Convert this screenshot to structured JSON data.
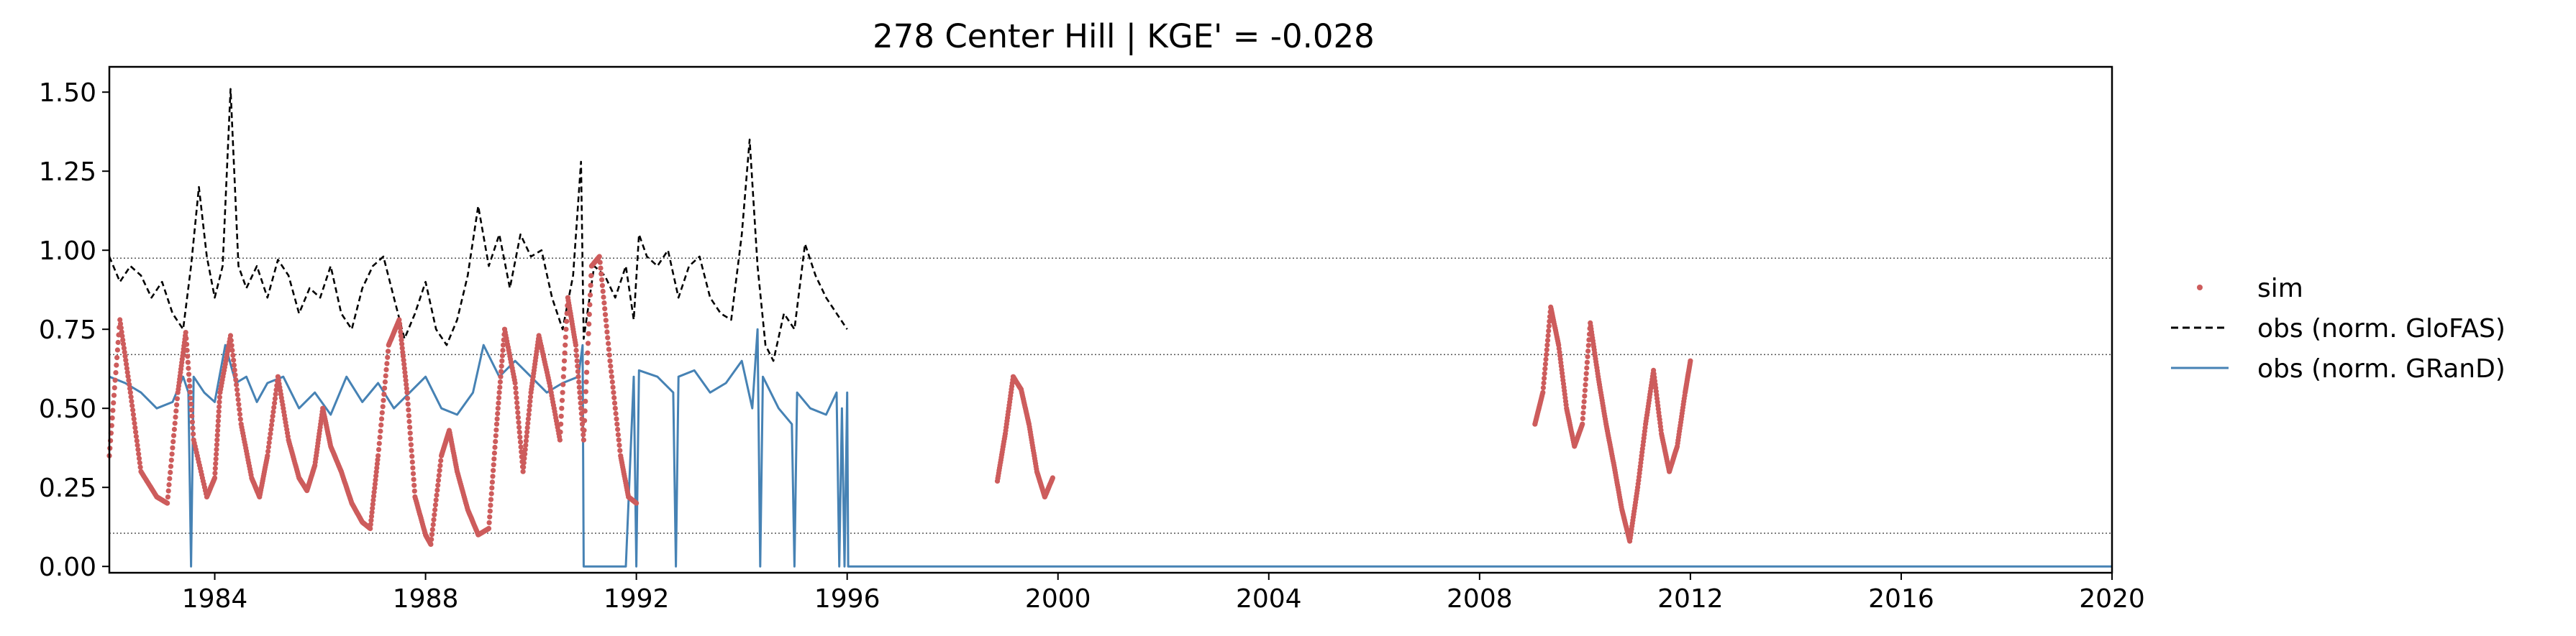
{
  "chart_data": {
    "type": "line",
    "title": "278  Center Hill | KGE' = -0.028",
    "xlabel": "",
    "ylabel": "",
    "xlim": [
      1982.0,
      2020.0
    ],
    "ylim": [
      -0.02,
      1.58
    ],
    "xticks": [
      1984,
      1988,
      1992,
      1996,
      2000,
      2004,
      2008,
      2012,
      2016,
      2020
    ],
    "xtick_labels": [
      "1984",
      "1988",
      "1992",
      "1996",
      "2000",
      "2004",
      "2008",
      "2012",
      "2016",
      "2020"
    ],
    "yticks": [
      0.0,
      0.25,
      0.5,
      0.75,
      1.0,
      1.25,
      1.5
    ],
    "ytick_labels": [
      "0.00",
      "0.25",
      "0.50",
      "0.75",
      "1.00",
      "1.25",
      "1.50"
    ],
    "hlines": [
      0.975,
      0.67,
      0.105
    ],
    "legend_position": "right, outside plot",
    "legend": [
      "sim",
      "obs (norm. GloFAS)",
      "obs (norm. GRanD)"
    ],
    "colors": {
      "sim": "#cd5c5c",
      "glofas": "#000000",
      "grand": "#4682b4",
      "hline": "#555555"
    },
    "series": [
      {
        "name": "sim",
        "style": "dots",
        "x": [
          1982.0,
          1982.2,
          1982.4,
          1982.6,
          1982.9,
          1983.1,
          1983.3,
          1983.45,
          1983.6,
          1983.85,
          1984.0,
          1984.1,
          1984.3,
          1984.5,
          1984.7,
          1984.85,
          1985.0,
          1985.2,
          1985.4,
          1985.6,
          1985.75,
          1985.9,
          1986.05,
          1986.2,
          1986.4,
          1986.6,
          1986.8,
          1986.95,
          1987.1,
          1987.3,
          1987.5,
          1987.65,
          1987.8,
          1988.0,
          1988.1,
          1988.3,
          1988.45,
          1988.6,
          1988.8,
          1989.0,
          1989.2,
          1989.35,
          1989.5,
          1989.7,
          1989.85,
          1990.0,
          1990.15,
          1990.35,
          1990.55,
          1990.7,
          1990.85,
          1991.0,
          1991.15,
          1991.3,
          1991.5,
          1991.7,
          1991.85,
          1992.0
        ],
        "y": [
          0.35,
          0.78,
          0.55,
          0.3,
          0.22,
          0.2,
          0.55,
          0.74,
          0.4,
          0.22,
          0.28,
          0.55,
          0.73,
          0.45,
          0.28,
          0.22,
          0.35,
          0.6,
          0.4,
          0.28,
          0.24,
          0.32,
          0.5,
          0.38,
          0.3,
          0.2,
          0.14,
          0.12,
          0.35,
          0.7,
          0.78,
          0.55,
          0.22,
          0.1,
          0.07,
          0.35,
          0.43,
          0.3,
          0.18,
          0.1,
          0.12,
          0.45,
          0.75,
          0.58,
          0.3,
          0.55,
          0.73,
          0.58,
          0.4,
          0.85,
          0.7,
          0.4,
          0.95,
          0.98,
          0.65,
          0.35,
          0.22,
          0.2
        ]
      },
      {
        "name": "sim",
        "style": "dots",
        "x": [
          1998.85,
          1999.0,
          1999.15,
          1999.3,
          1999.45,
          1999.6,
          1999.75,
          1999.9
        ],
        "y": [
          0.27,
          0.42,
          0.6,
          0.56,
          0.45,
          0.3,
          0.22,
          0.28
        ]
      },
      {
        "name": "sim",
        "style": "dots",
        "x": [
          2009.05,
          2009.2,
          2009.35,
          2009.5,
          2009.65,
          2009.8,
          2009.95,
          2010.1,
          2010.25,
          2010.4,
          2010.55,
          2010.7,
          2010.85,
          2011.0,
          2011.15,
          2011.3,
          2011.45,
          2011.6,
          2011.75,
          2011.9,
          2012.0
        ],
        "y": [
          0.45,
          0.55,
          0.82,
          0.7,
          0.5,
          0.38,
          0.45,
          0.77,
          0.6,
          0.45,
          0.32,
          0.18,
          0.08,
          0.25,
          0.45,
          0.62,
          0.42,
          0.3,
          0.38,
          0.55,
          0.65
        ]
      },
      {
        "name": "obs (norm. GloFAS)",
        "style": "dashed",
        "x": [
          1982.0,
          1982.2,
          1982.4,
          1982.6,
          1982.8,
          1983.0,
          1983.2,
          1983.4,
          1983.55,
          1983.7,
          1983.85,
          1984.0,
          1984.15,
          1984.3,
          1984.45,
          1984.6,
          1984.8,
          1985.0,
          1985.2,
          1985.4,
          1985.6,
          1985.8,
          1986.0,
          1986.2,
          1986.4,
          1986.6,
          1986.8,
          1987.0,
          1987.2,
          1987.4,
          1987.6,
          1987.8,
          1988.0,
          1988.2,
          1988.4,
          1988.6,
          1988.8,
          1989.0,
          1989.2,
          1989.4,
          1989.6,
          1989.8,
          1990.0,
          1990.2,
          1990.4,
          1990.6,
          1990.8,
          1990.95,
          1991.0,
          1991.2,
          1991.4,
          1991.6,
          1991.8,
          1991.95,
          1992.05,
          1992.2,
          1992.4,
          1992.6,
          1992.8,
          1993.0,
          1993.2,
          1993.4,
          1993.6,
          1993.8,
          1994.0,
          1994.15,
          1994.3,
          1994.45,
          1994.6,
          1994.8,
          1995.0,
          1995.2,
          1995.4,
          1995.6,
          1995.8,
          1996.0
        ],
        "y": [
          0.98,
          0.9,
          0.95,
          0.92,
          0.85,
          0.9,
          0.8,
          0.75,
          0.95,
          1.2,
          0.98,
          0.85,
          0.95,
          1.51,
          0.95,
          0.88,
          0.95,
          0.85,
          0.97,
          0.92,
          0.8,
          0.88,
          0.85,
          0.95,
          0.8,
          0.75,
          0.88,
          0.95,
          0.98,
          0.85,
          0.72,
          0.8,
          0.9,
          0.75,
          0.7,
          0.78,
          0.92,
          1.14,
          0.95,
          1.05,
          0.88,
          1.05,
          0.98,
          1.0,
          0.85,
          0.75,
          0.92,
          1.28,
          0.72,
          0.95,
          0.92,
          0.85,
          0.95,
          0.78,
          1.05,
          0.98,
          0.95,
          1.0,
          0.85,
          0.95,
          0.98,
          0.85,
          0.8,
          0.78,
          1.05,
          1.35,
          0.95,
          0.7,
          0.65,
          0.8,
          0.75,
          1.02,
          0.92,
          0.85,
          0.8,
          0.75
        ]
      },
      {
        "name": "obs (norm. GRanD)",
        "style": "solid",
        "x": [
          1982.0,
          1982.3,
          1982.6,
          1982.9,
          1983.2,
          1983.4,
          1983.5,
          1983.55,
          1983.6,
          1983.8,
          1984.0,
          1984.2,
          1984.4,
          1984.6,
          1984.8,
          1985.0,
          1985.3,
          1985.6,
          1985.9,
          1986.2,
          1986.5,
          1986.8,
          1987.1,
          1987.4,
          1987.7,
          1988.0,
          1988.3,
          1988.6,
          1988.9,
          1989.1,
          1989.4,
          1989.7,
          1990.0,
          1990.3,
          1990.6,
          1990.9,
          1990.98,
          1991.0,
          1991.4,
          1991.8,
          1991.95,
          1992.0,
          1992.05,
          1992.4,
          1992.7,
          1992.75,
          1992.8,
          1993.1,
          1993.4,
          1993.7,
          1994.0,
          1994.2,
          1994.3,
          1994.35,
          1994.4,
          1994.7,
          1994.95,
          1995.0,
          1995.05,
          1995.3,
          1995.6,
          1995.8,
          1995.85,
          1995.9,
          1995.95,
          1996.0,
          1996.02,
          2020.0
        ],
        "y": [
          0.6,
          0.58,
          0.55,
          0.5,
          0.52,
          0.6,
          0.55,
          0.0,
          0.6,
          0.55,
          0.52,
          0.7,
          0.58,
          0.6,
          0.52,
          0.58,
          0.6,
          0.5,
          0.55,
          0.48,
          0.6,
          0.52,
          0.58,
          0.5,
          0.55,
          0.6,
          0.5,
          0.48,
          0.55,
          0.7,
          0.6,
          0.65,
          0.6,
          0.55,
          0.58,
          0.6,
          0.7,
          0.0,
          0.0,
          0.0,
          0.6,
          0.0,
          0.62,
          0.6,
          0.55,
          0.0,
          0.6,
          0.62,
          0.55,
          0.58,
          0.65,
          0.5,
          0.75,
          0.0,
          0.6,
          0.5,
          0.45,
          0.0,
          0.55,
          0.5,
          0.48,
          0.55,
          0.0,
          0.5,
          0.0,
          0.55,
          0.0,
          0.0
        ]
      }
    ]
  }
}
